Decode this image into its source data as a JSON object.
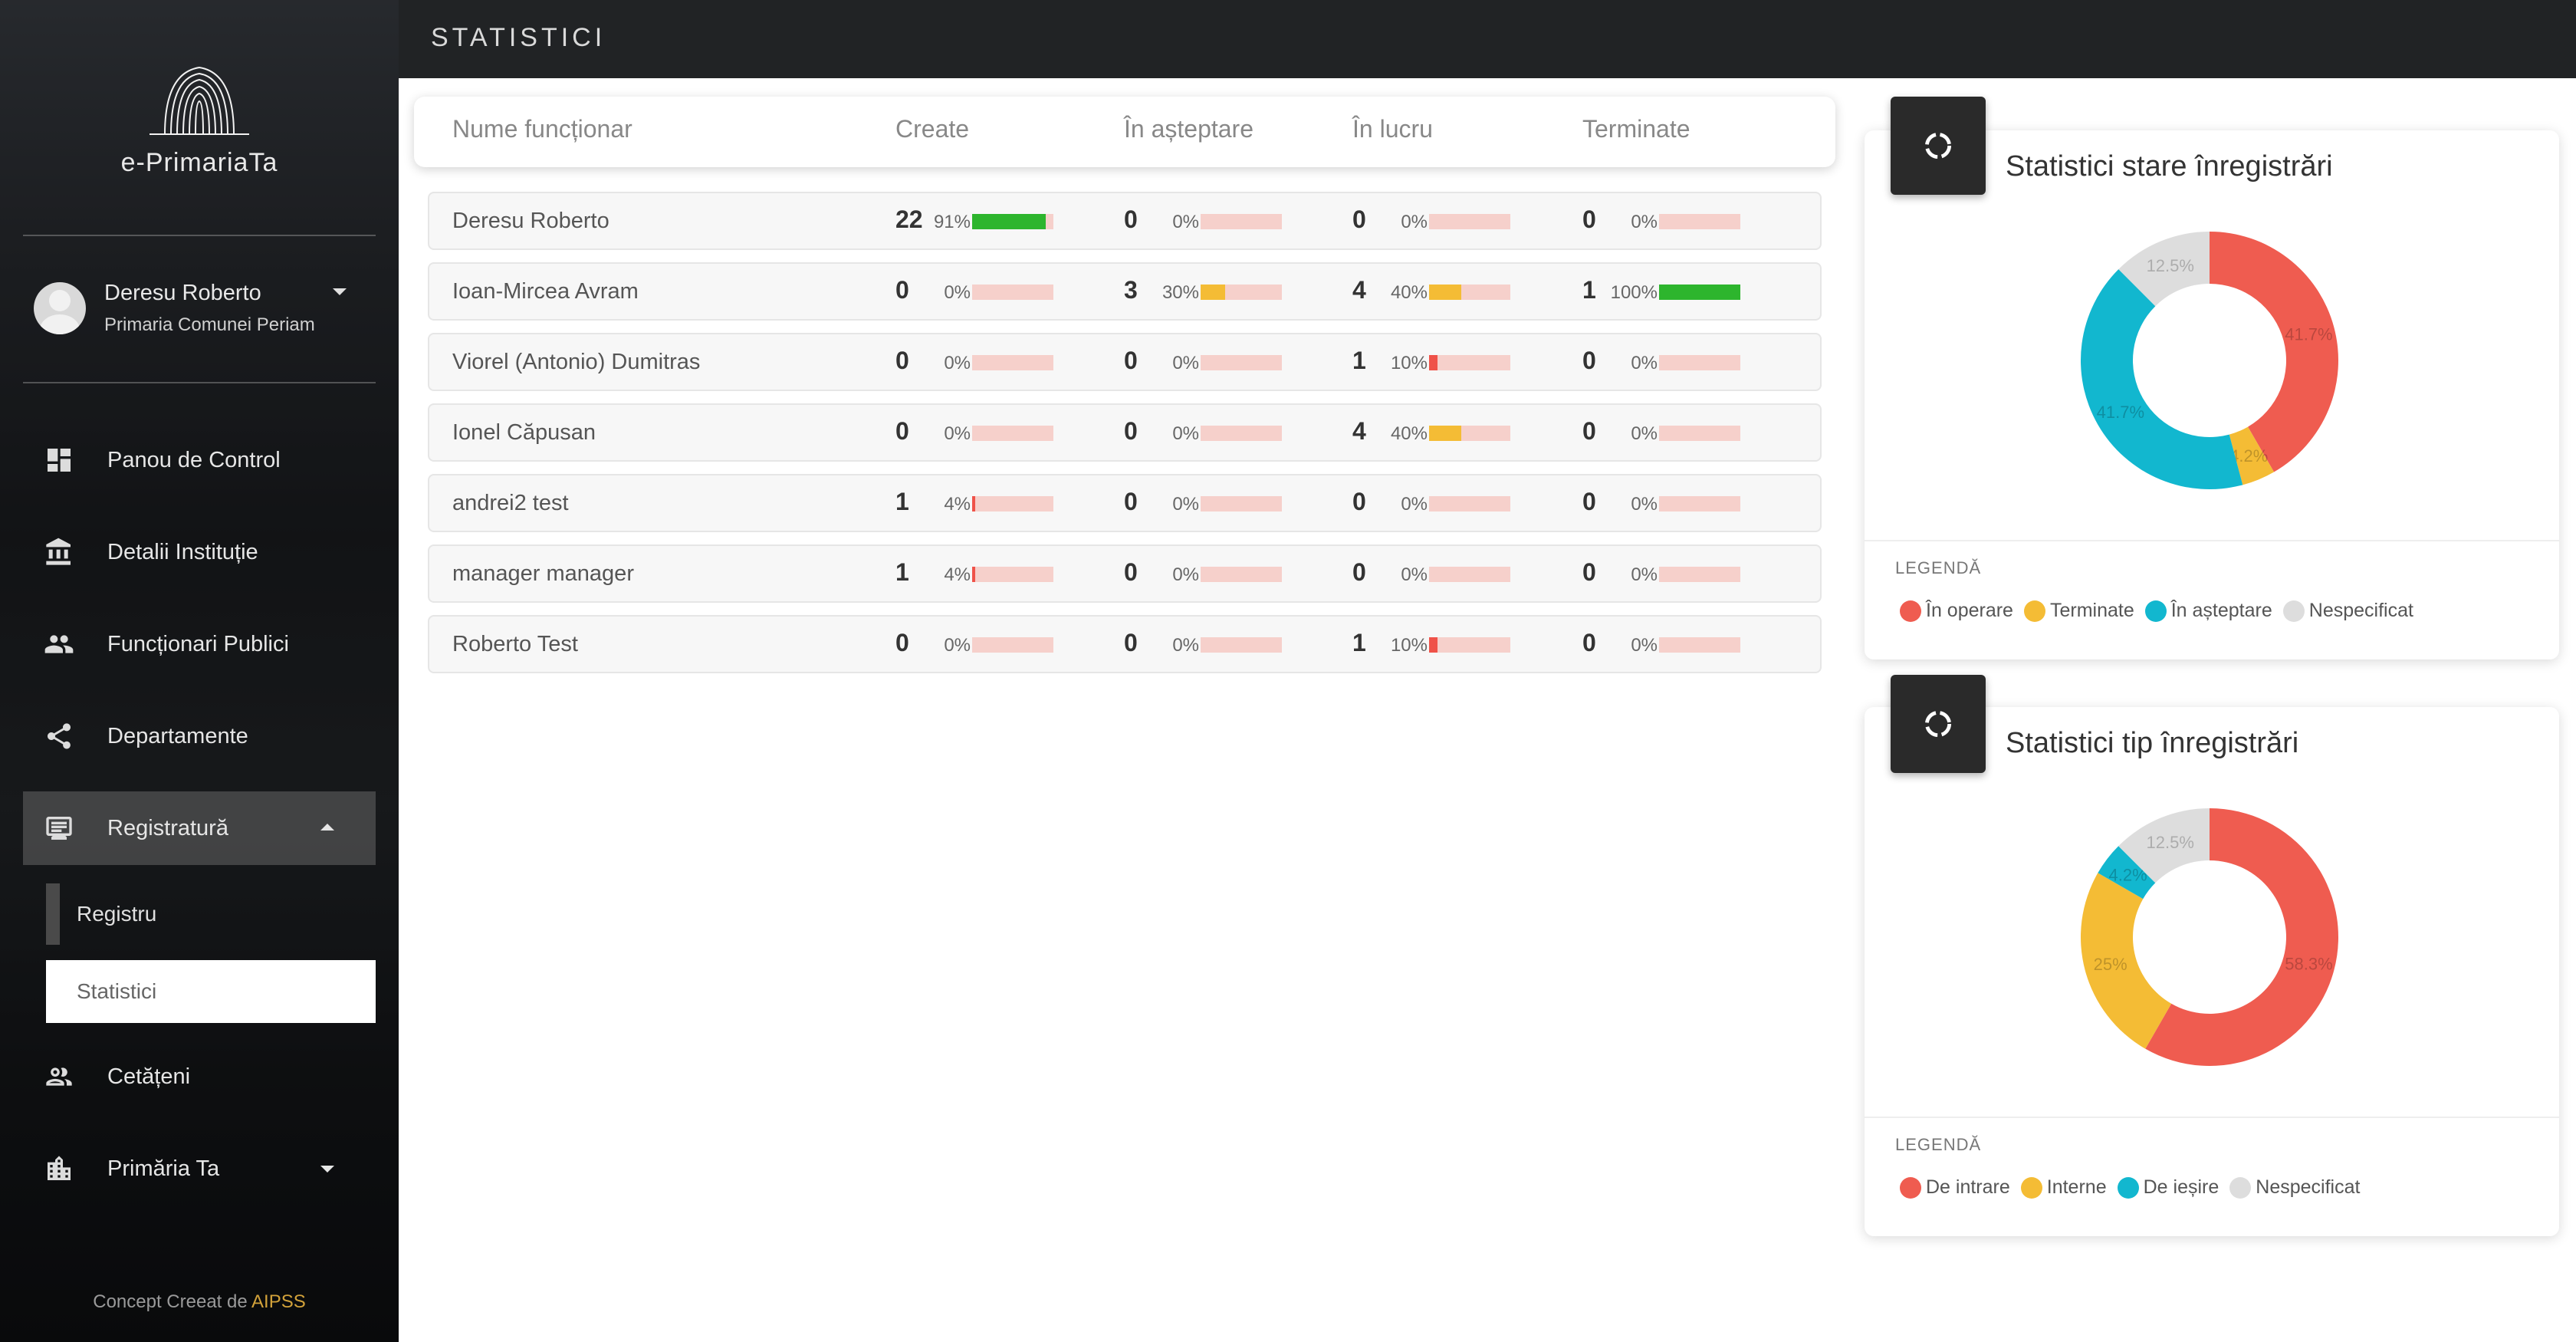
{
  "sidebar": {
    "logo_text": "e-PrimariaTa",
    "user": {
      "name": "Deresu Roberto",
      "org": "Primaria Comunei Periam"
    },
    "nav": [
      {
        "label": "Panou de Control",
        "icon": "dashboard-icon"
      },
      {
        "label": "Detalii Instituție",
        "icon": "institution-icon"
      },
      {
        "label": "Funcționari Publici",
        "icon": "people-icon"
      },
      {
        "label": "Departamente",
        "icon": "share-icon"
      },
      {
        "label": "Registratură",
        "icon": "registry-icon"
      },
      {
        "label": "Cetățeni",
        "icon": "citizens-icon"
      },
      {
        "label": "Primăria Ta",
        "icon": "city-icon"
      }
    ],
    "sub": {
      "registru": "Registru",
      "statistici": "Statistici"
    },
    "footer": {
      "prefix": "Concept Creeat de",
      "brand": "AIPSS"
    }
  },
  "topbar": {
    "title": "STATISTICI"
  },
  "table": {
    "headers": [
      "Nume funcționar",
      "Create",
      "În așteptare",
      "În lucru",
      "Terminate"
    ],
    "rows": [
      {
        "name": "Deresu Roberto",
        "create": [
          "22",
          "91%"
        ],
        "asteptare": [
          "0",
          "0%"
        ],
        "lucru": [
          "0",
          "0%"
        ],
        "terminate": [
          "0",
          "0%"
        ]
      },
      {
        "name": "Ioan-Mircea Avram",
        "create": [
          "0",
          "0%"
        ],
        "asteptare": [
          "3",
          "30%"
        ],
        "lucru": [
          "4",
          "40%"
        ],
        "terminate": [
          "1",
          "100%"
        ]
      },
      {
        "name": "Viorel (Antonio) Dumitras",
        "create": [
          "0",
          "0%"
        ],
        "asteptare": [
          "0",
          "0%"
        ],
        "lucru": [
          "1",
          "10%"
        ],
        "terminate": [
          "0",
          "0%"
        ]
      },
      {
        "name": "Ionel Căpusan",
        "create": [
          "0",
          "0%"
        ],
        "asteptare": [
          "0",
          "0%"
        ],
        "lucru": [
          "4",
          "40%"
        ],
        "terminate": [
          "0",
          "0%"
        ]
      },
      {
        "name": "andrei2 test",
        "create": [
          "1",
          "4%"
        ],
        "asteptare": [
          "0",
          "0%"
        ],
        "lucru": [
          "0",
          "0%"
        ],
        "terminate": [
          "0",
          "0%"
        ]
      },
      {
        "name": "manager manager",
        "create": [
          "1",
          "4%"
        ],
        "asteptare": [
          "0",
          "0%"
        ],
        "lucru": [
          "0",
          "0%"
        ],
        "terminate": [
          "0",
          "0%"
        ]
      },
      {
        "name": "Roberto Test",
        "create": [
          "0",
          "0%"
        ],
        "asteptare": [
          "0",
          "0%"
        ],
        "lucru": [
          "1",
          "10%"
        ],
        "terminate": [
          "0",
          "0%"
        ]
      }
    ],
    "colors": {
      "green": "#2db52d",
      "yellow": "#f4bc35",
      "red": "#ef5249",
      "bar_bg": "#f6d0cb"
    }
  },
  "card_stare": {
    "title": "Statistici stare înregistrări",
    "legend_title": "LEGENDĂ",
    "legend": [
      {
        "label": "În operare",
        "color": "#ef5c50"
      },
      {
        "label": "Terminate",
        "color": "#f4bc35"
      },
      {
        "label": "În așteptare",
        "color": "#12b7cf"
      },
      {
        "label": "Nespecificat",
        "color": "#dddddd"
      }
    ]
  },
  "card_tip": {
    "title": "Statistici tip înregistrări",
    "legend_title": "LEGENDĂ",
    "legend": [
      {
        "label": "De intrare",
        "color": "#ef5c50"
      },
      {
        "label": "Interne",
        "color": "#f4bc35"
      },
      {
        "label": "De ieșire",
        "color": "#12b7cf"
      },
      {
        "label": "Nespecificat",
        "color": "#dddddd"
      }
    ]
  },
  "chart_data": [
    {
      "type": "pie",
      "title": "Statistici stare înregistrări",
      "categories": [
        "În operare",
        "Terminate",
        "În așteptare",
        "Nespecificat"
      ],
      "values": [
        41.7,
        4.2,
        41.7,
        12.5
      ],
      "labels": [
        "41.7%",
        "4.2%",
        "41.7%",
        "12.5%"
      ]
    },
    {
      "type": "pie",
      "title": "Statistici tip înregistrări",
      "categories": [
        "De intrare",
        "Interne",
        "De ieșire",
        "Nespecificat"
      ],
      "values": [
        58.3,
        25,
        4.2,
        12.5
      ],
      "labels": [
        "58.3%",
        "25%",
        "4.2%",
        "12.5%"
      ]
    }
  ]
}
